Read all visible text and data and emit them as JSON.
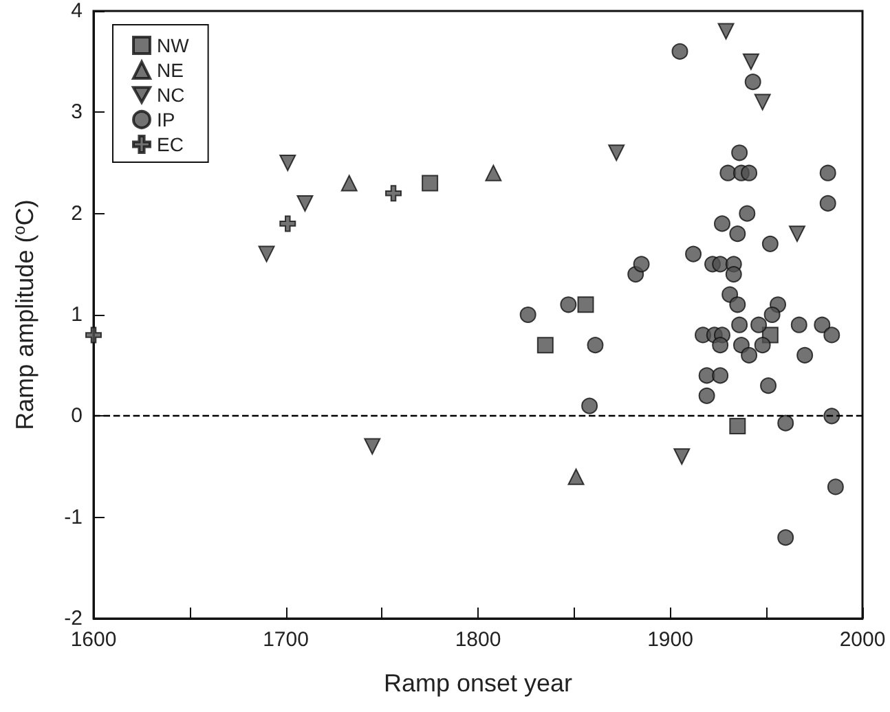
{
  "chart_data": {
    "type": "scatter",
    "xlabel": "Ramp onset year",
    "ylabel": "Ramp amplitude ($^{o}$C)",
    "xlim": [
      1600,
      2000
    ],
    "xticks": [
      1600,
      {
        "value": 1650,
        "label": null
      },
      1700,
      {
        "value": 1750,
        "label": null
      },
      1800,
      {
        "value": 1850,
        "label": null
      },
      1900,
      {
        "value": 1950,
        "label": null
      },
      2000
    ],
    "ylim": [
      -2,
      4
    ],
    "yticks": [
      -2,
      -1,
      0,
      1,
      2,
      3,
      4
    ],
    "grid": false,
    "legend": "top left",
    "ref_lines": [
      {
        "axis": "y",
        "value": 0,
        "line_style": "dashed",
        "color": "#000000"
      }
    ],
    "series": [
      {
        "name": "NW",
        "marker": "square",
        "color": "#505050",
        "x": [
          1775,
          1835,
          1856,
          1952,
          1935
        ],
        "values": [
          2.3,
          0.7,
          1.1,
          0.8,
          -0.1
        ]
      },
      {
        "name": "NE",
        "marker": "triangle",
        "color": "#505050",
        "x": [
          1733,
          1808,
          1851
        ],
        "values": [
          2.3,
          2.4,
          -0.6
        ]
      },
      {
        "name": "NC",
        "marker": "triangle-down",
        "color": "#505050",
        "x": [
          1690,
          1701,
          1710,
          1745,
          1872,
          1906,
          1929,
          1942,
          1948,
          1966
        ],
        "values": [
          1.6,
          2.5,
          2.1,
          -0.3,
          2.6,
          -0.4,
          3.8,
          3.5,
          3.1,
          1.8
        ]
      },
      {
        "name": "IP",
        "marker": "circle",
        "color": "#505050",
        "x": [
          1905,
          1943,
          1936,
          1930,
          1937,
          1941,
          1982,
          1982,
          1940,
          1927,
          1935,
          1952,
          1912,
          1882,
          1885,
          1922,
          1926,
          1933,
          1933,
          1931,
          1935,
          1956,
          1953,
          1847,
          1826,
          1936,
          1946,
          1967,
          1979,
          1984,
          1917,
          1923,
          1927,
          1926,
          1937,
          1948,
          1941,
          1970,
          1861,
          1919,
          1926,
          1951,
          1919,
          1858,
          1984,
          1960,
          1986,
          1960
        ],
        "values": [
          3.6,
          3.3,
          2.6,
          2.4,
          2.4,
          2.4,
          2.4,
          2.1,
          2.0,
          1.9,
          1.8,
          1.7,
          1.6,
          1.4,
          1.5,
          1.5,
          1.5,
          1.5,
          1.4,
          1.2,
          1.1,
          1.1,
          1.0,
          1.1,
          1.0,
          0.9,
          0.9,
          0.9,
          0.9,
          0.8,
          0.8,
          0.8,
          0.8,
          0.7,
          0.7,
          0.7,
          0.6,
          0.6,
          0.7,
          0.4,
          0.4,
          0.3,
          0.2,
          0.1,
          0.0,
          -0.07,
          -0.7,
          -1.2
        ]
      },
      {
        "name": "EC",
        "marker": "cross",
        "color": "#505050",
        "x": [
          1600,
          1701,
          1756
        ],
        "values": [
          0.8,
          1.9,
          2.2
        ]
      }
    ]
  }
}
